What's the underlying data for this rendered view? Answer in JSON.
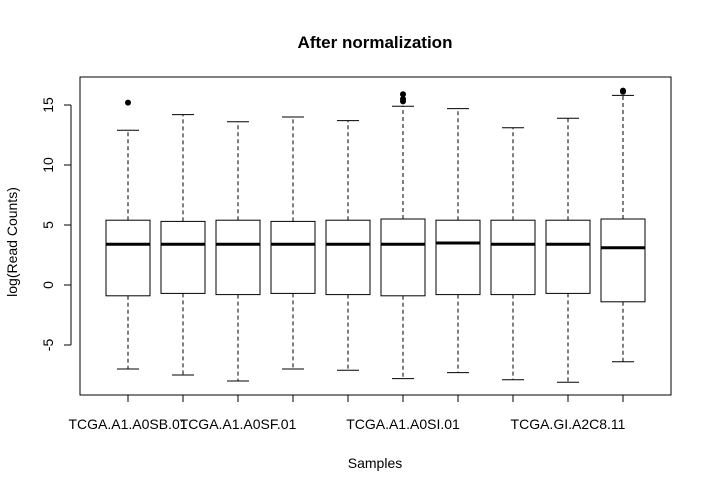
{
  "chart_data": {
    "type": "boxplot",
    "title": "After normalization",
    "xlabel": "Samples",
    "ylabel": "log(Read Counts)",
    "ylim": [
      -9,
      18
    ],
    "yticks": [
      -5,
      0,
      5,
      10,
      15
    ],
    "grid": false,
    "legend": "none",
    "x_tick_labels": [
      {
        "index": 0,
        "label": "TCGA.A1.A0SB.01"
      },
      {
        "index": 2,
        "label": "TCGA.A1.A0SF.01"
      },
      {
        "index": 5,
        "label": "TCGA.A1.A0SI.01"
      },
      {
        "index": 8,
        "label": "TCGA.GI.A2C8.11"
      }
    ],
    "boxes": [
      {
        "whisker_low": -7.0,
        "q1": -0.9,
        "median": 3.4,
        "q3": 5.4,
        "whisker_high": 12.9,
        "outliers": [
          15.2
        ]
      },
      {
        "whisker_low": -7.5,
        "q1": -0.7,
        "median": 3.4,
        "q3": 5.3,
        "whisker_high": 14.2,
        "outliers": []
      },
      {
        "whisker_low": -8.0,
        "q1": -0.8,
        "median": 3.4,
        "q3": 5.4,
        "whisker_high": 13.6,
        "outliers": []
      },
      {
        "whisker_low": -7.0,
        "q1": -0.7,
        "median": 3.4,
        "q3": 5.3,
        "whisker_high": 14.0,
        "outliers": []
      },
      {
        "whisker_low": -7.1,
        "q1": -0.8,
        "median": 3.4,
        "q3": 5.4,
        "whisker_high": 13.7,
        "outliers": []
      },
      {
        "whisker_low": -7.8,
        "q1": -0.9,
        "median": 3.4,
        "q3": 5.5,
        "whisker_high": 14.9,
        "outliers": [
          15.3,
          15.5,
          15.9
        ]
      },
      {
        "whisker_low": -7.3,
        "q1": -0.8,
        "median": 3.5,
        "q3": 5.4,
        "whisker_high": 14.7,
        "outliers": []
      },
      {
        "whisker_low": -7.9,
        "q1": -0.8,
        "median": 3.4,
        "q3": 5.4,
        "whisker_high": 13.1,
        "outliers": []
      },
      {
        "whisker_low": -8.1,
        "q1": -0.7,
        "median": 3.4,
        "q3": 5.4,
        "whisker_high": 13.9,
        "outliers": []
      },
      {
        "whisker_low": -6.4,
        "q1": -1.4,
        "median": 3.1,
        "q3": 5.5,
        "whisker_high": 15.8,
        "outliers": [
          16.1,
          16.2
        ]
      }
    ]
  }
}
